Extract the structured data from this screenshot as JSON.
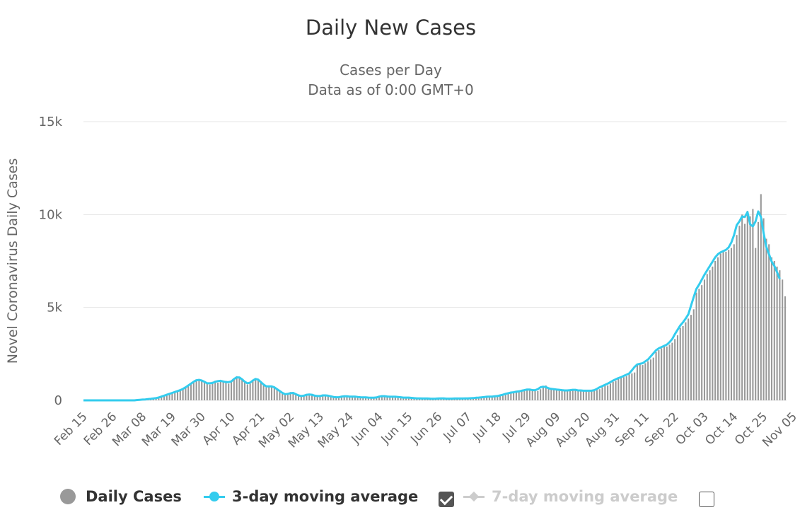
{
  "colors": {
    "daily_bar": "#999999",
    "avg3": "#33ccee",
    "avg7_disabled": "#cccccc",
    "grid": "#e6e6e6"
  },
  "chart_data": {
    "type": "bar",
    "title": "Daily New Cases",
    "subtitle": [
      "Cases per Day",
      "Data as of 0:00 GMT+0"
    ],
    "ylabel": "Novel Coronavirus Daily Cases",
    "xlabel": "",
    "ylim": [
      0,
      15000
    ],
    "y_ticks": [
      {
        "value": 0,
        "label": "0"
      },
      {
        "value": 5000,
        "label": "5k"
      },
      {
        "value": 10000,
        "label": "10k"
      },
      {
        "value": 15000,
        "label": "15k"
      }
    ],
    "x_start": "Feb 15",
    "x_tick_labels": [
      "Feb 15",
      "Feb 26",
      "Mar 08",
      "Mar 19",
      "Mar 30",
      "Apr 10",
      "Apr 21",
      "May 02",
      "May 13",
      "May 24",
      "Jun 04",
      "Jun 15",
      "Jun 26",
      "Jul 07",
      "Jul 18",
      "Jul 29",
      "Aug 09",
      "Aug 20",
      "Aug 31",
      "Sep 11",
      "Sep 22",
      "Oct 03",
      "Oct 14",
      "Oct 25",
      "Nov 05"
    ],
    "grid": true,
    "legend_position": "bottom",
    "series": [
      {
        "name": "Daily Cases",
        "type": "bar",
        "values": [
          0,
          0,
          0,
          0,
          0,
          0,
          0,
          0,
          0,
          0,
          0,
          0,
          0,
          0,
          0,
          0,
          0,
          0,
          0,
          0,
          20,
          30,
          40,
          50,
          60,
          80,
          100,
          120,
          150,
          200,
          250,
          300,
          350,
          400,
          450,
          500,
          550,
          600,
          700,
          800,
          900,
          1000,
          1100,
          1150,
          1050,
          950,
          900,
          850,
          1000,
          1050,
          950,
          1100,
          1000,
          1050,
          900,
          1000,
          1150,
          1300,
          1250,
          1150,
          1000,
          850,
          900,
          1100,
          1200,
          1150,
          1000,
          800,
          700,
          750,
          800,
          700,
          600,
          500,
          400,
          300,
          300,
          450,
          400,
          350,
          250,
          200,
          250,
          300,
          350,
          300,
          250,
          200,
          250,
          250,
          300,
          250,
          200,
          200,
          150,
          150,
          200,
          250,
          200,
          200,
          200,
          200,
          200,
          150,
          150,
          180,
          150,
          150,
          120,
          150,
          200,
          250,
          220,
          200,
          200,
          180,
          200,
          200,
          150,
          150,
          150,
          150,
          150,
          100,
          100,
          120,
          100,
          100,
          100,
          100,
          80,
          80,
          100,
          120,
          100,
          100,
          100,
          80,
          100,
          100,
          100,
          100,
          100,
          100,
          120,
          100,
          120,
          150,
          150,
          150,
          180,
          200,
          200,
          200,
          200,
          250,
          250,
          300,
          350,
          400,
          400,
          450,
          450,
          500,
          500,
          550,
          600,
          600,
          550,
          500,
          600,
          700,
          800,
          700,
          650,
          600,
          600,
          600,
          550,
          550,
          550,
          500,
          550,
          600,
          550,
          500,
          550,
          500,
          500,
          550,
          500,
          550,
          600,
          700,
          800,
          800,
          900,
          1000,
          1050,
          1150,
          1200,
          1250,
          1300,
          1400,
          1450,
          1500,
          1900,
          2000,
          1900,
          2000,
          2100,
          2200,
          2300,
          2600,
          2700,
          2800,
          2900,
          2900,
          3000,
          3100,
          3300,
          3500,
          3900,
          4000,
          4200,
          4400,
          4600,
          4900,
          5800,
          6000,
          6200,
          6500,
          6800,
          7000,
          7200,
          7500,
          7700,
          7900,
          8000,
          8000,
          8100,
          8200,
          8400,
          8900,
          9400,
          10000,
          9500,
          10200,
          9900,
          10300,
          8200,
          9600,
          11100,
          9800,
          8700,
          8400,
          7700,
          7500,
          7200,
          7000,
          6500,
          5600
        ]
      },
      {
        "name": "3-day moving average",
        "type": "line",
        "values": [
          0,
          0,
          0,
          0,
          0,
          0,
          0,
          0,
          0,
          0,
          0,
          0,
          0,
          0,
          0,
          0,
          0,
          0,
          0,
          0,
          20,
          30,
          40,
          50,
          63,
          80,
          100,
          123,
          157,
          200,
          250,
          300,
          350,
          400,
          450,
          500,
          550,
          617,
          700,
          800,
          900,
          1000,
          1083,
          1100,
          1067,
          1000,
          917,
          917,
          933,
          1000,
          1033,
          1050,
          1017,
          983,
          983,
          1017,
          1150,
          1233,
          1233,
          1133,
          1000,
          917,
          950,
          1067,
          1150,
          1117,
          983,
          850,
          750,
          750,
          750,
          700,
          600,
          500,
          400,
          333,
          350,
          383,
          400,
          333,
          267,
          233,
          250,
          300,
          317,
          300,
          250,
          233,
          233,
          267,
          267,
          250,
          217,
          183,
          167,
          167,
          200,
          217,
          217,
          200,
          200,
          200,
          183,
          167,
          160,
          160,
          150,
          140,
          140,
          157,
          200,
          223,
          223,
          207,
          193,
          193,
          193,
          183,
          167,
          150,
          150,
          150,
          133,
          117,
          107,
          107,
          100,
          100,
          100,
          93,
          87,
          93,
          100,
          107,
          107,
          93,
          93,
          93,
          100,
          100,
          100,
          100,
          107,
          107,
          113,
          123,
          140,
          150,
          160,
          177,
          193,
          200,
          200,
          217,
          233,
          267,
          300,
          350,
          383,
          417,
          433,
          467,
          483,
          517,
          550,
          583,
          583,
          550,
          550,
          600,
          700,
          733,
          717,
          650,
          617,
          600,
          583,
          567,
          550,
          533,
          533,
          550,
          567,
          567,
          533,
          533,
          517,
          517,
          517,
          517,
          550,
          617,
          700,
          767,
          833,
          900,
          983,
          1067,
          1133,
          1200,
          1250,
          1317,
          1383,
          1450,
          1617,
          1800,
          1933,
          1967,
          2000,
          2100,
          2200,
          2367,
          2533,
          2700,
          2800,
          2867,
          2933,
          3000,
          3133,
          3300,
          3567,
          3800,
          4033,
          4200,
          4400,
          4633,
          5100,
          5567,
          6000,
          6233,
          6500,
          6767,
          7000,
          7233,
          7467,
          7700,
          7867,
          7967,
          8033,
          8100,
          8233,
          8500,
          8900,
          9433,
          9633,
          9900,
          9867,
          10133,
          9467,
          9367,
          9633,
          10167,
          9867,
          9000,
          8267,
          7867,
          7467,
          7233,
          6900,
          6533
        ]
      },
      {
        "name": "7-day moving average",
        "type": "line",
        "visible": false,
        "values": []
      }
    ]
  },
  "legend": {
    "daily_label": "Daily Cases",
    "avg3_label": "3-day moving average",
    "avg7_label": "7-day moving average",
    "avg3_checked": true,
    "avg7_checked": false
  }
}
